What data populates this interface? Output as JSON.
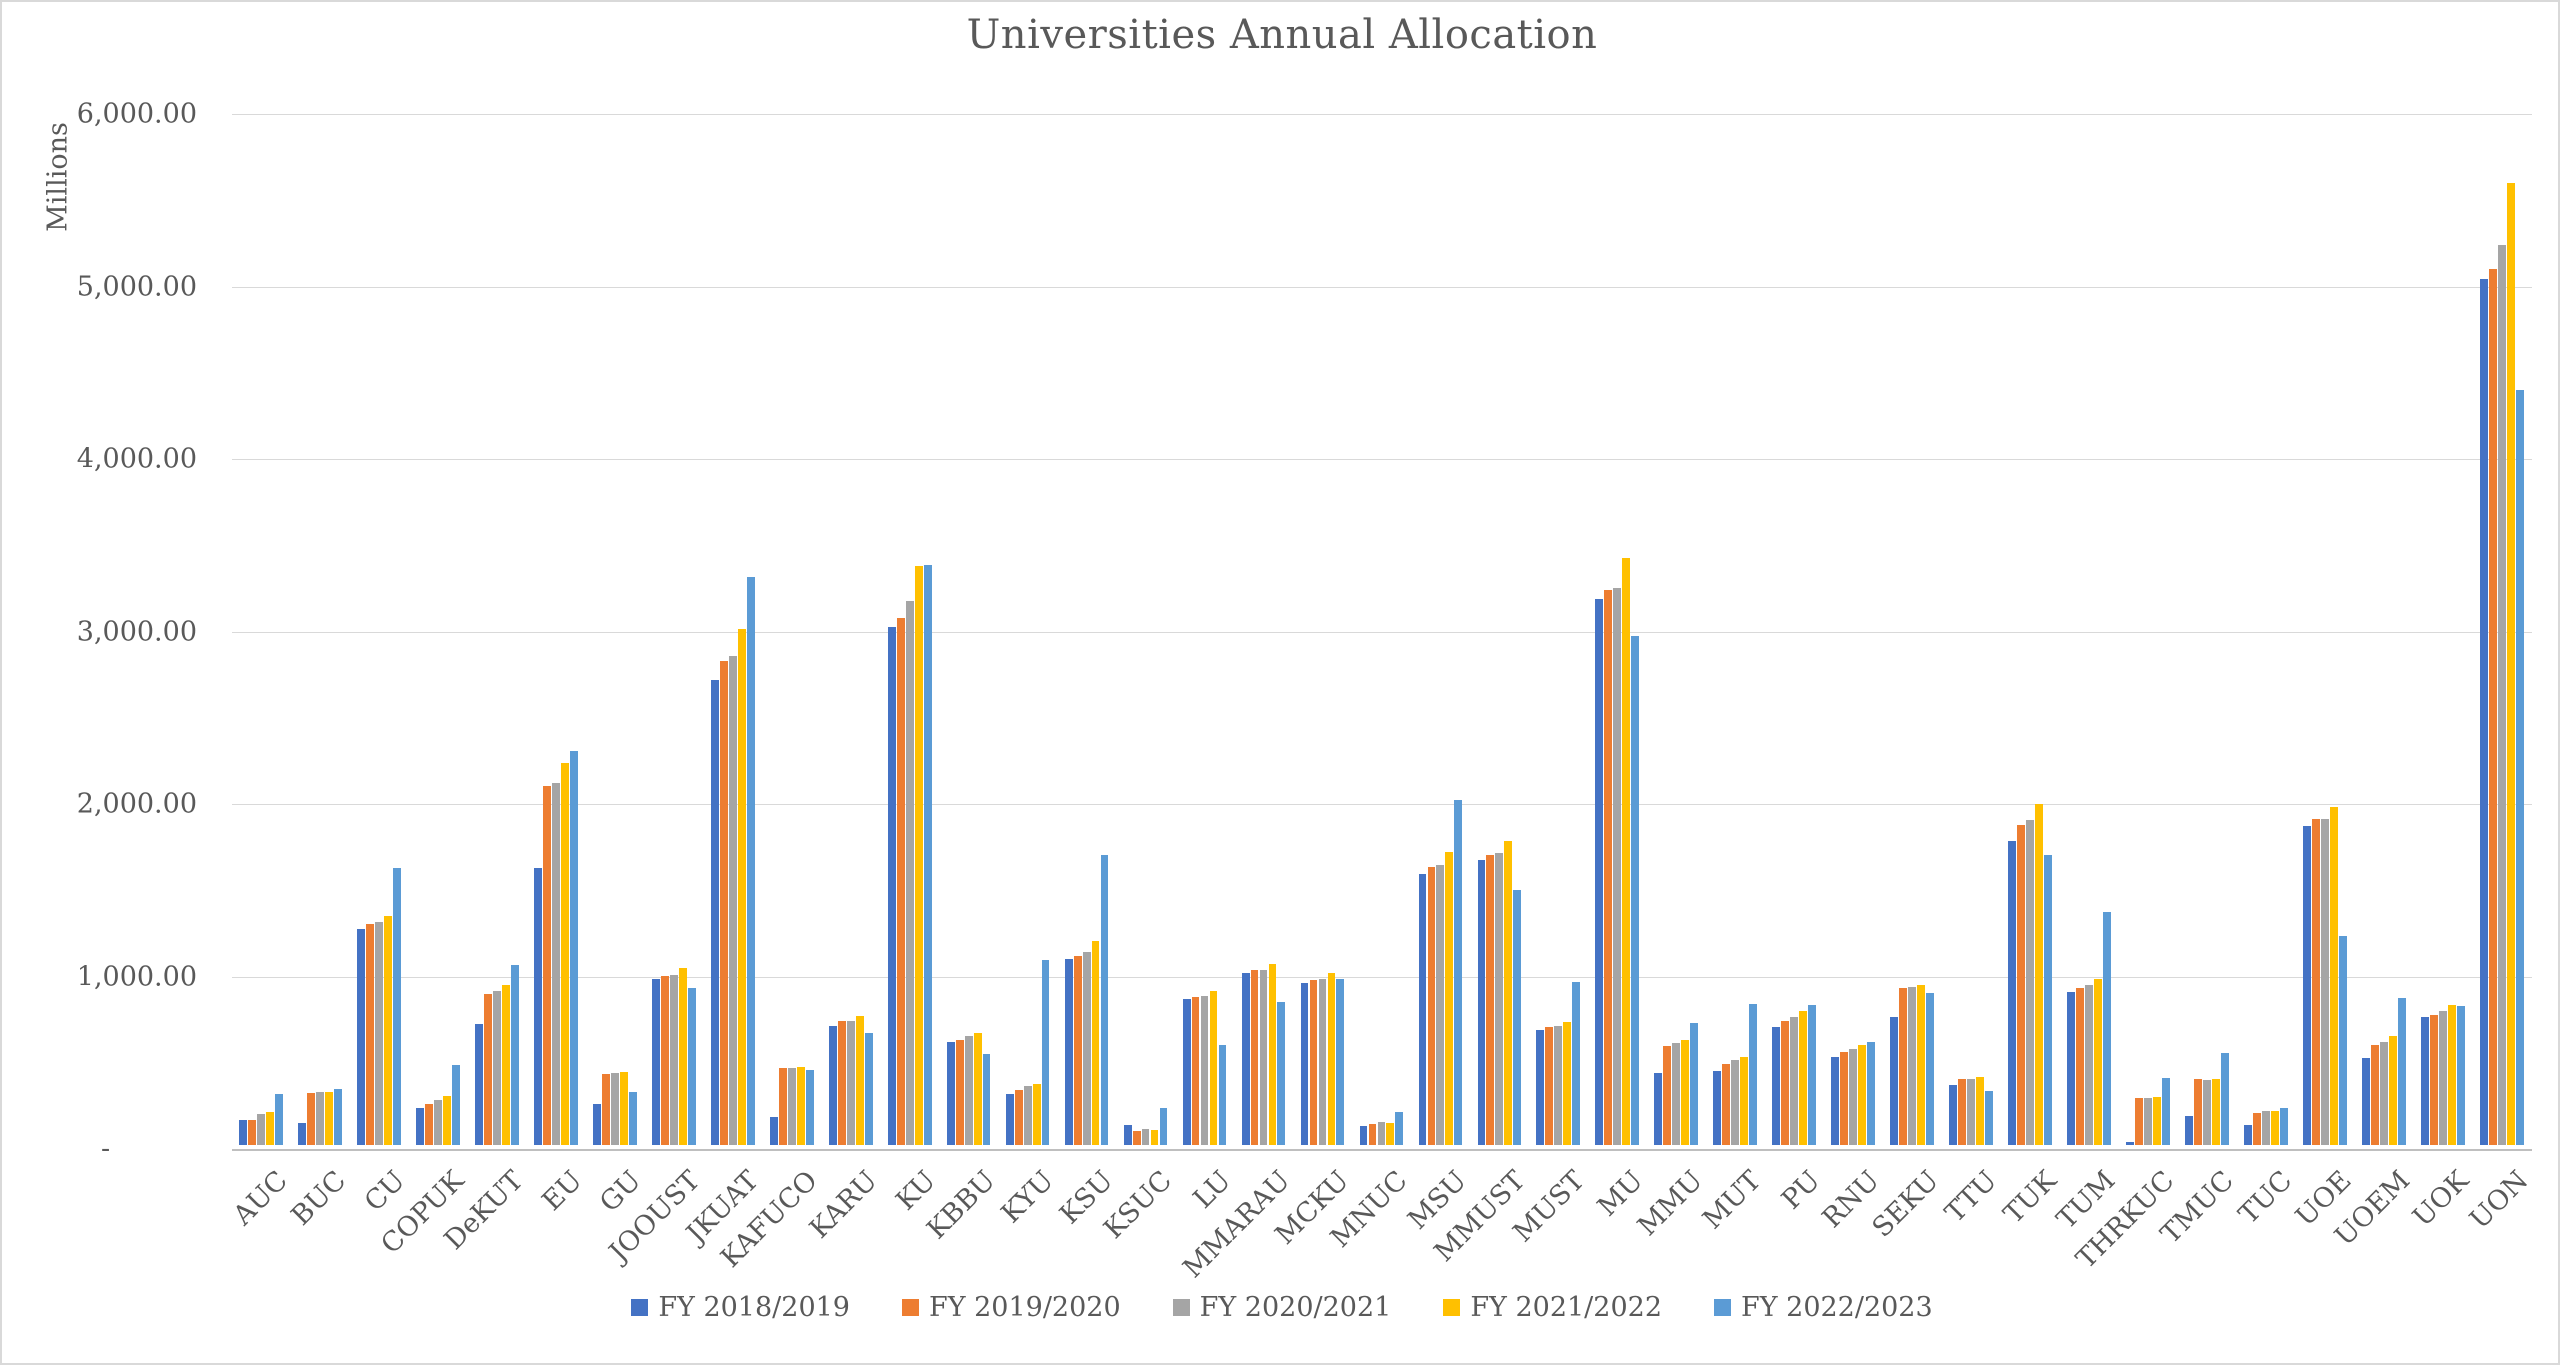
{
  "chart_data": {
    "type": "bar",
    "title": "Universities Annual Allocation",
    "ylabel": "Millions",
    "xlabel": "",
    "ylim": [
      0,
      6000
    ],
    "ytick_step": 1000,
    "ytick_labels_bottom_to_top": [
      "-",
      "1,000.00",
      "2,000.00",
      "3,000.00",
      "4,000.00",
      "5,000.00",
      "6,000.00"
    ],
    "grid": true,
    "legend_position": "bottom",
    "background_color": "#FFFFFF",
    "gridline_color": "#D9D9D9",
    "axis_line_color": "#BFBFBF",
    "text_color": "#595959",
    "categories": [
      "AUC",
      "BUC",
      "CU",
      "COPUK",
      "DeKUT",
      "EU",
      "GU",
      "JOOUST",
      "JKUAT",
      "KAFUCO",
      "KARU",
      "KU",
      "KBBU",
      "KYU",
      "KSU",
      "KSUC",
      "LU",
      "MMARAU",
      "MCKU",
      "MNUC",
      "MSU",
      "MMUST",
      "MUST",
      "MU",
      "MMU",
      "MUT",
      "PU",
      "RNU",
      "SEKU",
      "TTU",
      "TUK",
      "TUM",
      "THRKUC",
      "TMUC",
      "TUC",
      "UOE",
      "UOEM",
      "UOK",
      "UON"
    ],
    "series": [
      {
        "name": "FY 2018/2019",
        "color": "#4472C4",
        "values": [
          145,
          125,
          1255,
          215,
          700,
          1605,
          240,
          960,
          2695,
          165,
          690,
          3005,
          600,
          295,
          1080,
          115,
          845,
          995,
          940,
          110,
          1570,
          1650,
          665,
          3165,
          420,
          430,
          685,
          510,
          740,
          350,
          1760,
          885,
          15,
          170,
          115,
          1850,
          505,
          740,
          5020
        ]
      },
      {
        "name": "FY 2019/2020",
        "color": "#ED7D31",
        "values": [
          145,
          300,
          1280,
          240,
          875,
          2080,
          410,
          980,
          2805,
          445,
          720,
          3055,
          610,
          320,
          1095,
          80,
          860,
          1015,
          955,
          120,
          1610,
          1680,
          685,
          3215,
          575,
          470,
          720,
          540,
          910,
          385,
          1855,
          910,
          270,
          380,
          185,
          1890,
          580,
          755,
          5080
        ]
      },
      {
        "name": "FY 2020/2021",
        "color": "#A5A5A5",
        "values": [
          180,
          305,
          1290,
          260,
          890,
          2100,
          415,
          985,
          2835,
          445,
          720,
          3155,
          630,
          345,
          1120,
          90,
          865,
          1015,
          965,
          135,
          1625,
          1695,
          690,
          3230,
          590,
          490,
          740,
          555,
          915,
          380,
          1885,
          930,
          275,
          375,
          195,
          1890,
          595,
          775,
          5215
        ]
      },
      {
        "name": "FY 2021/2022",
        "color": "#FFC000",
        "values": [
          190,
          305,
          1325,
          285,
          925,
          2215,
          425,
          1025,
          2990,
          455,
          750,
          3355,
          650,
          355,
          1180,
          85,
          895,
          1050,
          995,
          125,
          1700,
          1760,
          715,
          3405,
          610,
          510,
          775,
          580,
          930,
          395,
          1975,
          960,
          280,
          385,
          200,
          1960,
          630,
          810,
          5575
        ]
      },
      {
        "name": "FY 2022/2023",
        "color": "#5B9BD5",
        "values": [
          295,
          325,
          1605,
          465,
          1045,
          2285,
          310,
          910,
          3295,
          435,
          650,
          3360,
          530,
          1075,
          1680,
          215,
          580,
          830,
          960,
          190,
          2000,
          1480,
          945,
          2950,
          705,
          820,
          810,
          595,
          880,
          315,
          1680,
          1350,
          390,
          535,
          215,
          1210,
          855,
          805,
          4375
        ]
      }
    ]
  }
}
